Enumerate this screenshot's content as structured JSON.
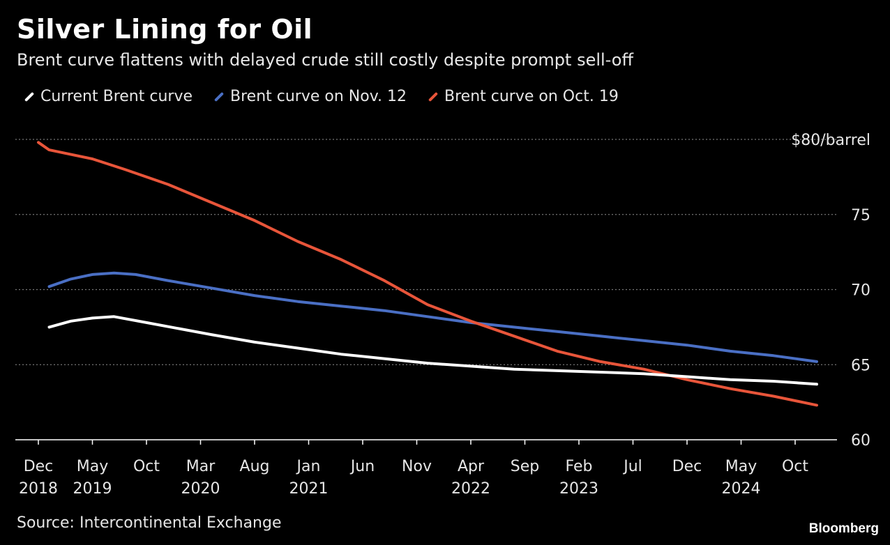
{
  "title": "Silver Lining for Oil",
  "subtitle": "Brent curve flattens with delayed crude still costly despite prompt sell-off",
  "source": "Source: Intercontinental Exchange",
  "brand": "Bloomberg",
  "colors": {
    "background": "#000000",
    "current": "#ffffff",
    "nov12": "#4a6fc4",
    "oct19": "#e8553a",
    "grid": "#777777"
  },
  "legend": [
    {
      "label": "Current Brent curve",
      "color": "#ffffff"
    },
    {
      "label": "Brent curve on Nov. 12",
      "color": "#4a6fc4"
    },
    {
      "label": "Brent curve on Oct. 19",
      "color": "#e8553a"
    }
  ],
  "chart_data": {
    "type": "line",
    "title": "Silver Lining for Oil",
    "subtitle": "Brent curve flattens with delayed crude still costly despite prompt sell-off",
    "xlabel": "",
    "ylabel": "",
    "ylim": [
      60,
      80
    ],
    "yticks": [
      {
        "value": 60,
        "label": "60"
      },
      {
        "value": 65,
        "label": "65"
      },
      {
        "value": 70,
        "label": "70"
      },
      {
        "value": 75,
        "label": "75"
      },
      {
        "value": 80,
        "label": "$80/barrel"
      }
    ],
    "xlim": [
      "2018-11",
      "2025-02"
    ],
    "xticks": [
      {
        "date": "2018-12",
        "label": [
          "Dec",
          "2018"
        ]
      },
      {
        "date": "2019-05",
        "label": [
          "May",
          "2019"
        ]
      },
      {
        "date": "2019-10",
        "label": [
          "Oct",
          ""
        ]
      },
      {
        "date": "2020-03",
        "label": [
          "Mar",
          "2020"
        ]
      },
      {
        "date": "2020-08",
        "label": [
          "Aug",
          ""
        ]
      },
      {
        "date": "2021-01",
        "label": [
          "Jan",
          "2021"
        ]
      },
      {
        "date": "2021-06",
        "label": [
          "Jun",
          ""
        ]
      },
      {
        "date": "2021-11",
        "label": [
          "Nov",
          ""
        ]
      },
      {
        "date": "2022-04",
        "label": [
          "Apr",
          "2022"
        ]
      },
      {
        "date": "2022-09",
        "label": [
          "Sep",
          ""
        ]
      },
      {
        "date": "2023-02",
        "label": [
          "Feb",
          "2023"
        ]
      },
      {
        "date": "2023-07",
        "label": [
          "Jul",
          ""
        ]
      },
      {
        "date": "2023-12",
        "label": [
          "Dec",
          ""
        ]
      },
      {
        "date": "2024-05",
        "label": [
          "May",
          "2024"
        ]
      },
      {
        "date": "2024-10",
        "label": [
          "Oct",
          ""
        ]
      }
    ],
    "grid": true,
    "legend_position": "top-left",
    "series": [
      {
        "name": "Current Brent curve",
        "color": "#ffffff",
        "points": [
          [
            "2019-01",
            67.5
          ],
          [
            "2019-03",
            67.9
          ],
          [
            "2019-05",
            68.1
          ],
          [
            "2019-07",
            68.2
          ],
          [
            "2019-10",
            67.8
          ],
          [
            "2020-01",
            67.4
          ],
          [
            "2020-04",
            67.0
          ],
          [
            "2020-08",
            66.5
          ],
          [
            "2020-12",
            66.1
          ],
          [
            "2021-04",
            65.7
          ],
          [
            "2021-08",
            65.4
          ],
          [
            "2021-12",
            65.1
          ],
          [
            "2022-04",
            64.9
          ],
          [
            "2022-08",
            64.7
          ],
          [
            "2022-12",
            64.6
          ],
          [
            "2023-04",
            64.5
          ],
          [
            "2023-08",
            64.4
          ],
          [
            "2023-12",
            64.2
          ],
          [
            "2024-04",
            64.0
          ],
          [
            "2024-08",
            63.9
          ],
          [
            "2024-12",
            63.7
          ]
        ]
      },
      {
        "name": "Brent curve on Nov. 12",
        "color": "#4a6fc4",
        "points": [
          [
            "2019-01",
            70.2
          ],
          [
            "2019-03",
            70.7
          ],
          [
            "2019-05",
            71.0
          ],
          [
            "2019-07",
            71.1
          ],
          [
            "2019-09",
            71.0
          ],
          [
            "2019-12",
            70.6
          ],
          [
            "2020-04",
            70.1
          ],
          [
            "2020-08",
            69.6
          ],
          [
            "2020-12",
            69.2
          ],
          [
            "2021-04",
            68.9
          ],
          [
            "2021-08",
            68.6
          ],
          [
            "2021-12",
            68.2
          ],
          [
            "2022-04",
            67.8
          ],
          [
            "2022-08",
            67.5
          ],
          [
            "2022-12",
            67.2
          ],
          [
            "2023-04",
            66.9
          ],
          [
            "2023-08",
            66.6
          ],
          [
            "2023-12",
            66.3
          ],
          [
            "2024-04",
            65.9
          ],
          [
            "2024-08",
            65.6
          ],
          [
            "2024-12",
            65.2
          ]
        ]
      },
      {
        "name": "Brent curve on Oct. 19",
        "color": "#e8553a",
        "points": [
          [
            "2018-12",
            79.8
          ],
          [
            "2019-01",
            79.3
          ],
          [
            "2019-05",
            78.7
          ],
          [
            "2019-08",
            78.0
          ],
          [
            "2019-12",
            77.0
          ],
          [
            "2020-04",
            75.8
          ],
          [
            "2020-08",
            74.6
          ],
          [
            "2020-12",
            73.2
          ],
          [
            "2021-04",
            72.0
          ],
          [
            "2021-08",
            70.6
          ],
          [
            "2021-12",
            69.0
          ],
          [
            "2022-04",
            67.9
          ],
          [
            "2022-08",
            66.9
          ],
          [
            "2022-12",
            65.9
          ],
          [
            "2023-04",
            65.2
          ],
          [
            "2023-08",
            64.7
          ],
          [
            "2023-12",
            64.0
          ],
          [
            "2024-04",
            63.4
          ],
          [
            "2024-08",
            62.9
          ],
          [
            "2024-12",
            62.3
          ]
        ]
      }
    ]
  }
}
